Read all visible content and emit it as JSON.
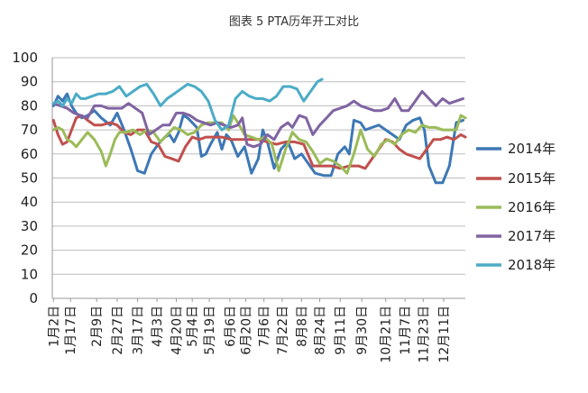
{
  "chart_data": {
    "type": "line",
    "title": "图表 5 PTA历年开工对比",
    "xlabel": "",
    "ylabel": "",
    "ylim": [
      0,
      100
    ],
    "yticks": [
      0,
      10,
      20,
      30,
      40,
      50,
      60,
      70,
      80,
      90,
      100
    ],
    "grid": true,
    "legend": "right",
    "x_ticks": [
      "1月2日",
      "1月17日",
      "2月9日",
      "2月27日",
      "3月17日",
      "4月3日",
      "4月20日",
      "5月4日",
      "5月19日",
      "6月6日",
      "6月20日",
      "7月6日",
      "7月22日",
      "8月8日",
      "8月24日",
      "9月11日",
      "9月30日",
      "10月21日",
      "11月7日",
      "11月23日",
      "12月11日"
    ],
    "x_tick_days": [
      2,
      17,
      40,
      58,
      76,
      93,
      110,
      124,
      139,
      157,
      171,
      187,
      203,
      220,
      236,
      254,
      273,
      294,
      311,
      327,
      345
    ],
    "x_day_range": [
      1,
      364
    ],
    "series": [
      {
        "name": "2014年",
        "color": "#3d78b5",
        "x": [
          2,
          6,
          10,
          14,
          18,
          22,
          27,
          32,
          38,
          44,
          52,
          58,
          64,
          70,
          76,
          82,
          88,
          94,
          100,
          104,
          108,
          112,
          116,
          120,
          124,
          128,
          132,
          136,
          140,
          146,
          150,
          154,
          158,
          164,
          170,
          176,
          182,
          186,
          190,
          196,
          202,
          208,
          214,
          220,
          226,
          232,
          240,
          246,
          252,
          258,
          262,
          266,
          272,
          276,
          282,
          288,
          294,
          300,
          306,
          312,
          318,
          324,
          328,
          332,
          338,
          344,
          350,
          356,
          362
        ],
        "y": [
          80,
          84,
          82,
          85,
          80,
          77,
          75,
          76,
          78,
          75,
          72,
          77,
          70,
          62,
          53,
          52,
          60,
          64,
          67,
          68,
          65,
          69,
          76,
          75,
          73,
          71,
          59,
          60,
          64,
          69,
          62,
          68,
          66,
          59,
          63,
          52,
          58,
          70,
          65,
          54,
          62,
          65,
          58,
          60,
          56,
          52,
          51,
          51,
          60,
          63,
          60,
          74,
          73,
          70,
          71,
          72,
          70,
          68,
          66,
          72,
          74,
          75,
          70,
          55,
          48,
          48,
          55,
          73,
          74
        ]
      },
      {
        "name": "2015年",
        "color": "#c0504d",
        "x": [
          2,
          6,
          10,
          14,
          18,
          22,
          27,
          32,
          38,
          44,
          52,
          58,
          64,
          70,
          76,
          82,
          88,
          94,
          100,
          106,
          112,
          118,
          124,
          130,
          136,
          142,
          150,
          158,
          166,
          174,
          182,
          190,
          198,
          206,
          214,
          222,
          230,
          238,
          246,
          254,
          262,
          270,
          276,
          282,
          288,
          294,
          300,
          306,
          312,
          318,
          324,
          330,
          336,
          342,
          348,
          354,
          360,
          364
        ],
        "y": [
          74,
          68,
          64,
          65,
          70,
          75,
          76,
          74,
          72,
          72,
          73,
          72,
          69,
          68,
          70,
          70,
          65,
          64,
          59,
          58,
          57,
          63,
          67,
          66,
          67,
          67,
          67,
          66,
          66,
          66,
          66,
          65,
          64,
          65,
          65,
          64,
          55,
          55,
          55,
          54,
          55,
          55,
          54,
          58,
          62,
          66,
          65,
          62,
          60,
          59,
          58,
          62,
          66,
          66,
          67,
          66,
          68,
          67
        ]
      },
      {
        "name": "2016年",
        "color": "#9bbb59",
        "x": [
          2,
          6,
          10,
          14,
          18,
          22,
          27,
          32,
          38,
          44,
          48,
          52,
          56,
          60,
          66,
          72,
          78,
          84,
          90,
          96,
          102,
          108,
          114,
          120,
          126,
          132,
          138,
          144,
          150,
          156,
          160,
          164,
          170,
          176,
          182,
          188,
          194,
          200,
          206,
          212,
          218,
          224,
          230,
          236,
          242,
          248,
          254,
          260,
          266,
          272,
          278,
          284,
          290,
          296,
          302,
          308,
          314,
          320,
          326,
          332,
          338,
          344,
          350,
          356,
          360,
          364
        ],
        "y": [
          70,
          71,
          70,
          66,
          65,
          63,
          66,
          69,
          66,
          61,
          55,
          60,
          66,
          69,
          69,
          70,
          68,
          70,
          69,
          65,
          68,
          71,
          70,
          68,
          69,
          72,
          73,
          73,
          73,
          70,
          76,
          73,
          68,
          67,
          66,
          67,
          64,
          53,
          62,
          69,
          66,
          65,
          61,
          56,
          58,
          57,
          55,
          52,
          60,
          70,
          62,
          59,
          64,
          66,
          64,
          68,
          70,
          69,
          72,
          71,
          71,
          70,
          70,
          70,
          76,
          75
        ]
      },
      {
        "name": "2017年",
        "color": "#8064a2",
        "x": [
          2,
          8,
          14,
          20,
          26,
          32,
          38,
          44,
          50,
          56,
          62,
          68,
          74,
          80,
          86,
          92,
          98,
          104,
          110,
          116,
          122,
          128,
          134,
          140,
          146,
          152,
          158,
          164,
          168,
          172,
          178,
          184,
          190,
          196,
          202,
          208,
          212,
          218,
          224,
          230,
          236,
          242,
          248,
          254,
          260,
          266,
          272,
          278,
          284,
          290,
          296,
          302,
          308,
          314,
          320,
          326,
          332,
          338,
          344,
          350,
          356,
          362
        ],
        "y": [
          81,
          80,
          79,
          77,
          76,
          75,
          80,
          80,
          79,
          79,
          79,
          81,
          79,
          77,
          68,
          70,
          72,
          72,
          77,
          77,
          76,
          74,
          73,
          72,
          73,
          72,
          71,
          72,
          75,
          64,
          63,
          64,
          68,
          66,
          71,
          73,
          71,
          76,
          75,
          68,
          72,
          75,
          78,
          79,
          80,
          82,
          80,
          79,
          78,
          78,
          79,
          83,
          78,
          78,
          82,
          86,
          83,
          80,
          83,
          81,
          82,
          83
        ]
      },
      {
        "name": "2018年",
        "color": "#4bacc6",
        "x": [
          2,
          6,
          10,
          14,
          18,
          22,
          26,
          30,
          36,
          42,
          48,
          54,
          60,
          66,
          72,
          78,
          84,
          90,
          96,
          102,
          108,
          114,
          120,
          126,
          132,
          138,
          144,
          150,
          156,
          162,
          168,
          174,
          180,
          186,
          192,
          198,
          204,
          210,
          216,
          222,
          228,
          234,
          238
        ],
        "y": [
          81,
          82,
          80,
          83,
          81,
          85,
          83,
          83,
          84,
          85,
          85,
          86,
          88,
          84,
          86,
          88,
          89,
          85,
          80,
          83,
          85,
          87,
          89,
          88,
          86,
          82,
          74,
          70,
          72,
          83,
          86,
          84,
          83,
          83,
          82,
          84,
          88,
          88,
          87,
          82,
          86,
          90,
          91
        ]
      }
    ]
  }
}
